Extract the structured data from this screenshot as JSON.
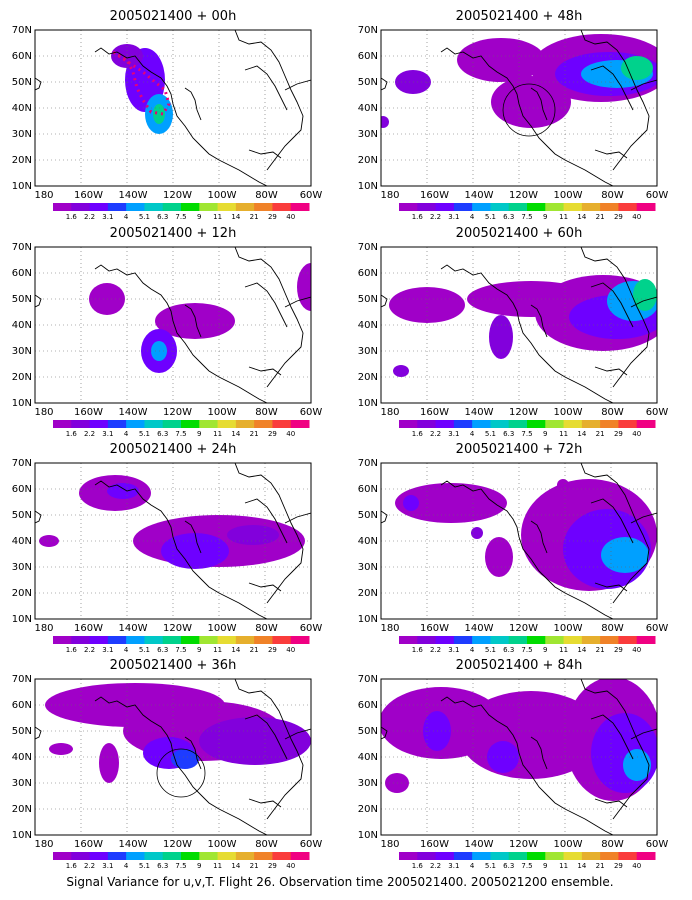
{
  "caption": "Signal Variance for u,v,T. Flight 26. Observation time 2005021400. 2005021200 ensemble.",
  "colorbar": {
    "labels": [
      "1.6",
      "2.2",
      "3.1",
      "4",
      "5.1",
      "6.3",
      "7.5",
      "9",
      "11",
      "14",
      "21",
      "29",
      "40"
    ],
    "colors": [
      "#a000c8",
      "#8200dc",
      "#6e00ff",
      "#1e3cff",
      "#00a0ff",
      "#00c8c8",
      "#00d28c",
      "#00dc00",
      "#a0e632",
      "#e6dc32",
      "#e6af2d",
      "#f08228",
      "#fa3c3c",
      "#f00082"
    ]
  },
  "axes": {
    "lat_labels": [
      "70N",
      "60N",
      "50N",
      "40N",
      "30N",
      "20N",
      "10N"
    ],
    "lon_labels": [
      "180",
      "160W",
      "140W",
      "120W",
      "100W",
      "80W",
      "60W"
    ]
  },
  "panels": [
    {
      "title": "2005021400 + 00h"
    },
    {
      "title": "2005021400 + 48h"
    },
    {
      "title": "2005021400 + 12h"
    },
    {
      "title": "2005021400 + 60h"
    },
    {
      "title": "2005021400 + 24h"
    },
    {
      "title": "2005021400 + 72h"
    },
    {
      "title": "2005021400 + 36h"
    },
    {
      "title": "2005021400 + 84h"
    }
  ]
}
